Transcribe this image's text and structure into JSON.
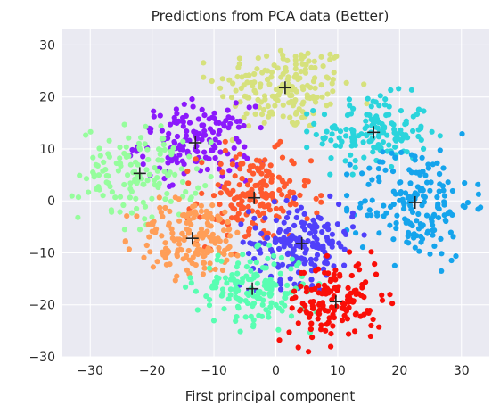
{
  "chart_data": {
    "type": "scatter",
    "title": "Predictions from PCA data (Better)",
    "xlabel": "First principal component",
    "ylabel": "",
    "xlim": [
      -34.5,
      34.5
    ],
    "ylim": [
      -30,
      33
    ],
    "xticks": [
      -30,
      -20,
      -10,
      0,
      10,
      20,
      30
    ],
    "yticks": [
      -30,
      -20,
      -10,
      0,
      10,
      20,
      30
    ],
    "grid": true,
    "background": "#eaeaf2",
    "centroid_marker": "+",
    "centroid_color": "#222222",
    "clusters": [
      {
        "color": "#d6e17c",
        "center": [
          1.5,
          21.8
        ],
        "spread": [
          5.5,
          4.2
        ],
        "count": 180
      },
      {
        "color": "#2ad4dc",
        "center": [
          15.8,
          13.2
        ],
        "spread": [
          4.5,
          3.5
        ],
        "count": 150
      },
      {
        "color": "#8b19fc",
        "center": [
          -13,
          11.2
        ],
        "spread": [
          4.5,
          3.5
        ],
        "count": 160
      },
      {
        "color": "#96fd9d",
        "center": [
          -22,
          5.3
        ],
        "spread": [
          4.8,
          4.5
        ],
        "count": 140
      },
      {
        "color": "#ff5a2e",
        "center": [
          -3.5,
          0.6
        ],
        "spread": [
          4.5,
          4.5
        ],
        "count": 180
      },
      {
        "color": "#15a4ec",
        "center": [
          22.5,
          -0.3
        ],
        "spread": [
          4.6,
          5.5
        ],
        "count": 180
      },
      {
        "color": "#ff9e58",
        "center": [
          -13.5,
          -7.2
        ],
        "spread": [
          4.5,
          3.8
        ],
        "count": 160
      },
      {
        "color": "#5040fa",
        "center": [
          4.2,
          -8.2
        ],
        "spread": [
          4.2,
          3.8
        ],
        "count": 180
      },
      {
        "color": "#59feb2",
        "center": [
          -3.8,
          -16.9
        ],
        "spread": [
          4.5,
          3.5
        ],
        "count": 170
      },
      {
        "color": "#fa0e08",
        "center": [
          9.7,
          -19.4
        ],
        "spread": [
          3.8,
          4.0
        ],
        "count": 140
      }
    ]
  }
}
